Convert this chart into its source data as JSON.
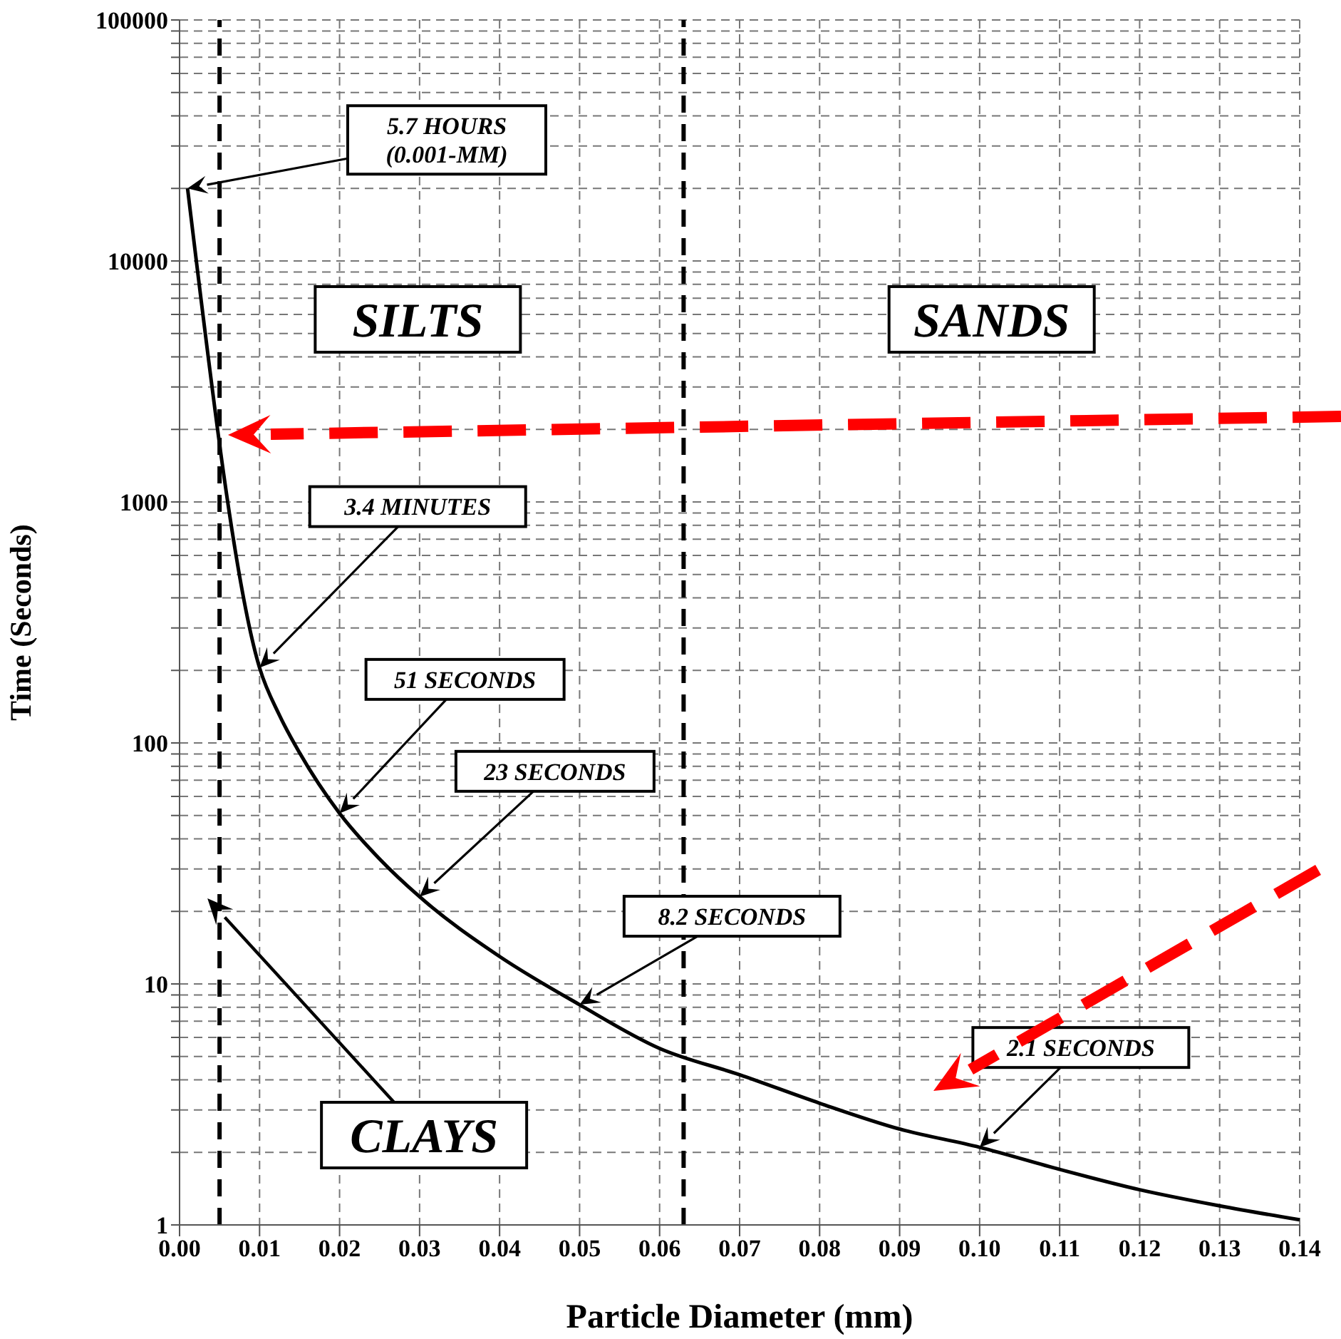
{
  "chart_data": {
    "type": "line",
    "xlabel": "Particle Diameter (mm)",
    "ylabel": "Time (Seconds)",
    "x": [
      0.001,
      0.01,
      0.0125,
      0.015,
      0.02,
      0.025,
      0.03,
      0.04,
      0.05,
      0.06,
      0.07,
      0.08,
      0.09,
      0.1,
      0.11,
      0.12,
      0.13,
      0.14
    ],
    "series": [
      {
        "color": "#000000",
        "values": [
          20000,
          205,
          130,
          91,
          51,
          33,
          23,
          13,
          8.2,
          5.4,
          4.2,
          3.2,
          2.5,
          2.1,
          1.7,
          1.4,
          1.2,
          1.05
        ]
      }
    ],
    "marker": "none",
    "log": "y",
    "grid": true,
    "xlim": [
      0,
      0.14
    ],
    "xticks": [
      {
        "value": 0,
        "label": "0.00"
      },
      {
        "value": 0.01,
        "label": "0.01"
      },
      {
        "value": 0.02,
        "label": "0.02"
      },
      {
        "value": 0.03,
        "label": "0.03"
      },
      {
        "value": 0.04,
        "label": "0.04"
      },
      {
        "value": 0.05,
        "label": "0.05"
      },
      {
        "value": 0.06,
        "label": "0.06"
      },
      {
        "value": 0.07,
        "label": "0.07"
      },
      {
        "value": 0.08,
        "label": "0.08"
      },
      {
        "value": 0.09,
        "label": "0.09"
      },
      {
        "value": 0.1,
        "label": "0.10"
      },
      {
        "value": 0.11,
        "label": "0.11"
      },
      {
        "value": 0.12,
        "label": "0.12"
      },
      {
        "value": 0.13,
        "label": "0.13"
      },
      {
        "value": 0.14,
        "label": "0.14"
      }
    ],
    "ylim": [
      1,
      100000
    ],
    "yticks": [
      1,
      {
        "value": 2,
        "label": null
      },
      {
        "value": 3,
        "label": null
      },
      {
        "value": 4,
        "label": null
      },
      {
        "value": 5,
        "label": null
      },
      {
        "value": 6,
        "label": null
      },
      {
        "value": 7,
        "label": null
      },
      {
        "value": 8,
        "label": null
      },
      {
        "value": 9,
        "label": null
      },
      10,
      {
        "value": 20,
        "label": null
      },
      {
        "value": 30,
        "label": null
      },
      {
        "value": 40,
        "label": null
      },
      {
        "value": 50,
        "label": null
      },
      {
        "value": 60,
        "label": null
      },
      {
        "value": 70,
        "label": null
      },
      {
        "value": 80,
        "label": null
      },
      {
        "value": 90,
        "label": null
      },
      100,
      {
        "value": 200,
        "label": null
      },
      {
        "value": 300,
        "label": null
      },
      {
        "value": 400,
        "label": null
      },
      {
        "value": 500,
        "label": null
      },
      {
        "value": 600,
        "label": null
      },
      {
        "value": 700,
        "label": null
      },
      {
        "value": 800,
        "label": null
      },
      {
        "value": 900,
        "label": null
      },
      1000,
      {
        "value": 2000,
        "label": null
      },
      {
        "value": 3000,
        "label": null
      },
      {
        "value": 4000,
        "label": null
      },
      {
        "value": 5000,
        "label": null
      },
      {
        "value": 6000,
        "label": null
      },
      {
        "value": 7000,
        "label": null
      },
      {
        "value": 8000,
        "label": null
      },
      {
        "value": 9000,
        "label": null
      },
      10000,
      {
        "value": 20000,
        "label": null
      },
      {
        "value": 30000,
        "label": null
      },
      {
        "value": 40000,
        "label": null
      },
      {
        "value": 50000,
        "label": null
      },
      {
        "value": 60000,
        "label": null
      },
      {
        "value": 70000,
        "label": null
      },
      {
        "value": 80000,
        "label": null
      },
      {
        "value": 90000,
        "label": null
      },
      100000
    ],
    "ref_lines": [
      {
        "axis": "x",
        "value": 0.005,
        "color": "#000000",
        "line_style": "dashed"
      },
      {
        "axis": "x",
        "value": 0.063,
        "color": "#000000",
        "line_style": "dashed"
      }
    ],
    "annotations": [
      "5.7 HOURS\n(0.001-MM)",
      "3.4 MINUTES",
      "51 SECONDS",
      "23 SECONDS",
      "8.2 SECONDS",
      "2.1 SECONDS",
      "SILTS",
      "SANDS",
      "CLAYS"
    ]
  }
}
